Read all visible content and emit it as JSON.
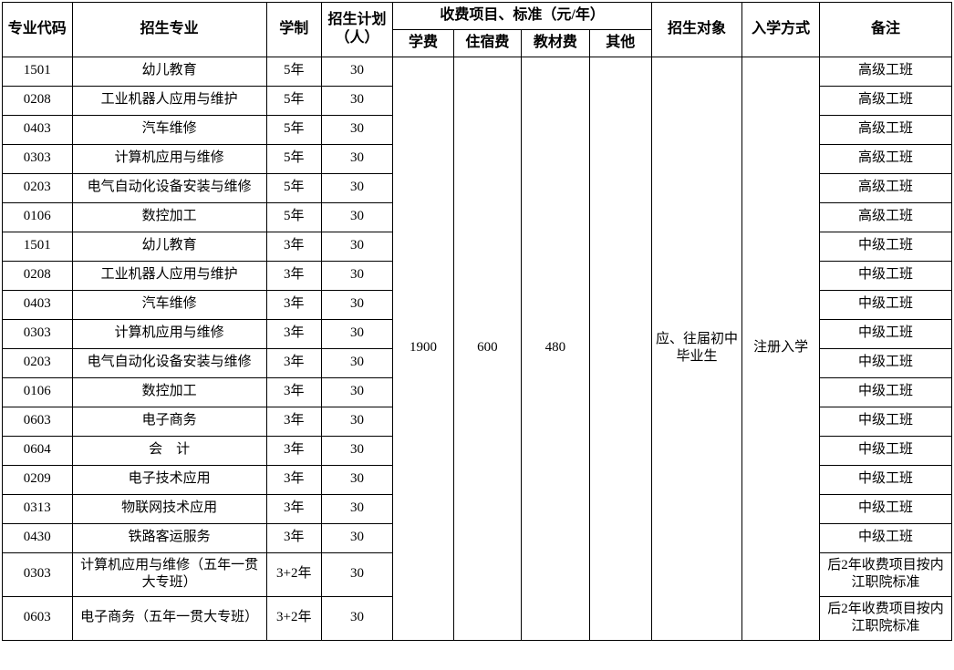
{
  "header": {
    "code": "专业代码",
    "major": "招生专业",
    "duration": "学制",
    "plan": "招生计划（人）",
    "feeGroup": "收费项目、标准（元/年）",
    "fee1": "学费",
    "fee2": "住宿费",
    "fee3": "教材费",
    "fee4": "其他",
    "target": "招生对象",
    "method": "入学方式",
    "note": "备注"
  },
  "merged": {
    "fee1": "1900",
    "fee2": "600",
    "fee3": "480",
    "fee4": "",
    "target": "应、往届初中毕业生",
    "method": "注册入学"
  },
  "rows": [
    {
      "code": "1501",
      "major": "幼儿教育",
      "duration": "5年",
      "plan": "30",
      "note": "高级工班"
    },
    {
      "code": "0208",
      "major": "工业机器人应用与维护",
      "duration": "5年",
      "plan": "30",
      "note": "高级工班"
    },
    {
      "code": "0403",
      "major": "汽车维修",
      "duration": "5年",
      "plan": "30",
      "note": "高级工班"
    },
    {
      "code": "0303",
      "major": "计算机应用与维修",
      "duration": "5年",
      "plan": "30",
      "note": "高级工班"
    },
    {
      "code": "0203",
      "major": "电气自动化设备安装与维修",
      "duration": "5年",
      "plan": "30",
      "note": "高级工班"
    },
    {
      "code": "0106",
      "major": "数控加工",
      "duration": "5年",
      "plan": "30",
      "note": "高级工班"
    },
    {
      "code": "1501",
      "major": "幼儿教育",
      "duration": "3年",
      "plan": "30",
      "note": "中级工班"
    },
    {
      "code": "0208",
      "major": "工业机器人应用与维护",
      "duration": "3年",
      "plan": "30",
      "note": "中级工班"
    },
    {
      "code": "0403",
      "major": "汽车维修",
      "duration": "3年",
      "plan": "30",
      "note": "中级工班"
    },
    {
      "code": "0303",
      "major": "计算机应用与维修",
      "duration": "3年",
      "plan": "30",
      "note": "中级工班"
    },
    {
      "code": "0203",
      "major": "电气自动化设备安装与维修",
      "duration": "3年",
      "plan": "30",
      "note": "中级工班"
    },
    {
      "code": "0106",
      "major": "数控加工",
      "duration": "3年",
      "plan": "30",
      "note": "中级工班"
    },
    {
      "code": "0603",
      "major": "电子商务",
      "duration": "3年",
      "plan": "30",
      "note": "中级工班"
    },
    {
      "code": "0604",
      "major": "会　计",
      "duration": "3年",
      "plan": "30",
      "note": "中级工班"
    },
    {
      "code": "0209",
      "major": "电子技术应用",
      "duration": "3年",
      "plan": "30",
      "note": "中级工班"
    },
    {
      "code": "0313",
      "major": "物联网技术应用",
      "duration": "3年",
      "plan": "30",
      "note": "中级工班"
    },
    {
      "code": "0430",
      "major": "铁路客运服务",
      "duration": "3年",
      "plan": "30",
      "note": "中级工班"
    },
    {
      "code": "0303",
      "major": "计算机应用与维修（五年一贯大专班）",
      "duration": "3+2年",
      "plan": "30",
      "note": "后2年收费项目按内江职院标准"
    },
    {
      "code": "0603",
      "major": "电子商务（五年一贯大专班）",
      "duration": "3+2年",
      "plan": "30",
      "note": "后2年收费项目按内江职院标准"
    }
  ]
}
